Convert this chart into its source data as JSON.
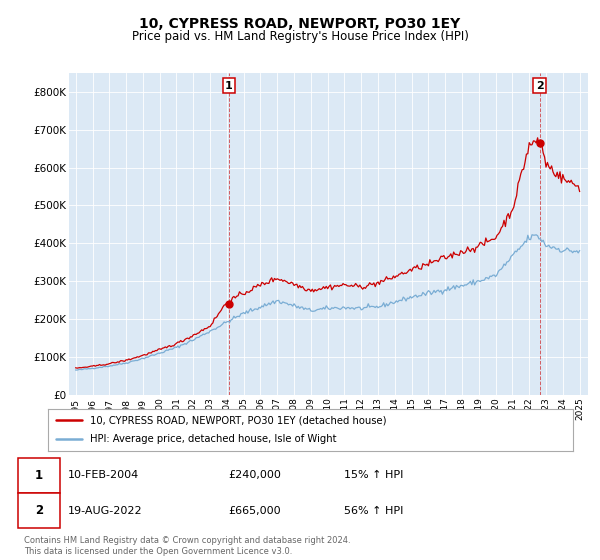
{
  "title": "10, CYPRESS ROAD, NEWPORT, PO30 1EY",
  "subtitle": "Price paid vs. HM Land Registry's House Price Index (HPI)",
  "ylim": [
    0,
    850000
  ],
  "yticks": [
    0,
    100000,
    200000,
    300000,
    400000,
    500000,
    600000,
    700000,
    800000
  ],
  "ytick_labels": [
    "£0",
    "£100K",
    "£200K",
    "£300K",
    "£400K",
    "£500K",
    "£600K",
    "£700K",
    "£800K"
  ],
  "bg_color": "#dce9f5",
  "red_color": "#cc0000",
  "blue_color": "#7aadd4",
  "sale1_year": 2004.12,
  "sale1_price": 240000,
  "sale2_year": 2022.63,
  "sale2_price": 665000,
  "legend_red": "10, CYPRESS ROAD, NEWPORT, PO30 1EY (detached house)",
  "legend_blue": "HPI: Average price, detached house, Isle of Wight",
  "footer": "Contains HM Land Registry data © Crown copyright and database right 2024.\nThis data is licensed under the Open Government Licence v3.0."
}
